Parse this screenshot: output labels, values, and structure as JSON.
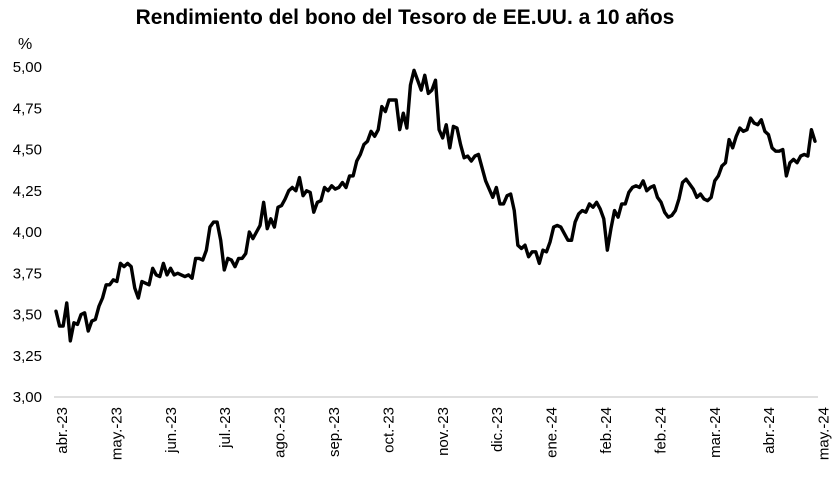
{
  "chart_data": {
    "type": "line",
    "title": "Rendimiento del bono del Tesoro de EE.UU. a 10 años",
    "ylabel": "%",
    "xlabel": "",
    "ylim": [
      3.0,
      5.0
    ],
    "y_ticks": [
      "3,00",
      "3,25",
      "3,50",
      "3,75",
      "4,00",
      "4,25",
      "4,50",
      "4,75",
      "5,00"
    ],
    "x_ticks": [
      "abr.-23",
      "may.-23",
      "jun.-23",
      "jul.-23",
      "ago.-23",
      "sep.-23",
      "oct.-23",
      "nov.-23",
      "dic.-23",
      "ene.-24",
      "feb.-24",
      "feb.-24",
      "mar.-24",
      "abr.-24",
      "may.-24"
    ],
    "grid": false,
    "legend": "none",
    "series": [
      {
        "color": "#000000",
        "values": [
          3.52,
          3.43,
          3.43,
          3.57,
          3.34,
          3.45,
          3.44,
          3.5,
          3.51,
          3.4,
          3.46,
          3.47,
          3.55,
          3.6,
          3.68,
          3.68,
          3.71,
          3.7,
          3.81,
          3.79,
          3.81,
          3.79,
          3.66,
          3.6,
          3.7,
          3.69,
          3.68,
          3.78,
          3.74,
          3.73,
          3.81,
          3.74,
          3.78,
          3.74,
          3.75,
          3.74,
          3.73,
          3.74,
          3.72,
          3.84,
          3.84,
          3.83,
          3.89,
          4.03,
          4.06,
          4.06,
          3.95,
          3.77,
          3.84,
          3.83,
          3.79,
          3.84,
          3.84,
          3.87,
          4.0,
          3.96,
          4.0,
          4.04,
          4.18,
          4.02,
          4.08,
          4.03,
          4.15,
          4.16,
          4.2,
          4.25,
          4.27,
          4.25,
          4.33,
          4.22,
          4.25,
          4.24,
          4.12,
          4.18,
          4.19,
          4.27,
          4.25,
          4.28,
          4.26,
          4.27,
          4.3,
          4.27,
          4.34,
          4.34,
          4.43,
          4.47,
          4.53,
          4.55,
          4.61,
          4.58,
          4.62,
          4.76,
          4.73,
          4.8,
          4.8,
          4.8,
          4.62,
          4.72,
          4.63,
          4.89,
          4.98,
          4.92,
          4.86,
          4.95,
          4.84,
          4.86,
          4.92,
          4.62,
          4.57,
          4.65,
          4.51,
          4.64,
          4.63,
          4.53,
          4.45,
          4.46,
          4.43,
          4.46,
          4.47,
          4.39,
          4.31,
          4.26,
          4.21,
          4.27,
          4.17,
          4.17,
          4.22,
          4.23,
          4.13,
          3.92,
          3.9,
          3.92,
          3.85,
          3.88,
          3.88,
          3.81,
          3.89,
          3.88,
          3.94,
          4.03,
          4.04,
          4.03,
          3.99,
          3.95,
          3.95,
          4.06,
          4.11,
          4.13,
          4.12,
          4.17,
          4.15,
          4.18,
          4.14,
          4.08,
          3.89,
          4.02,
          4.13,
          4.09,
          4.17,
          4.17,
          4.24,
          4.27,
          4.28,
          4.27,
          4.31,
          4.25,
          4.27,
          4.28,
          4.21,
          4.18,
          4.12,
          4.09,
          4.1,
          4.13,
          4.2,
          4.3,
          4.32,
          4.29,
          4.26,
          4.21,
          4.23,
          4.2,
          4.19,
          4.21,
          4.31,
          4.34,
          4.4,
          4.42,
          4.56,
          4.51,
          4.58,
          4.63,
          4.61,
          4.62,
          4.69,
          4.66,
          4.65,
          4.68,
          4.61,
          4.59,
          4.51,
          4.49,
          4.49,
          4.5,
          4.34,
          4.42,
          4.44,
          4.42,
          4.46,
          4.47,
          4.46,
          4.62,
          4.55
        ]
      }
    ]
  }
}
